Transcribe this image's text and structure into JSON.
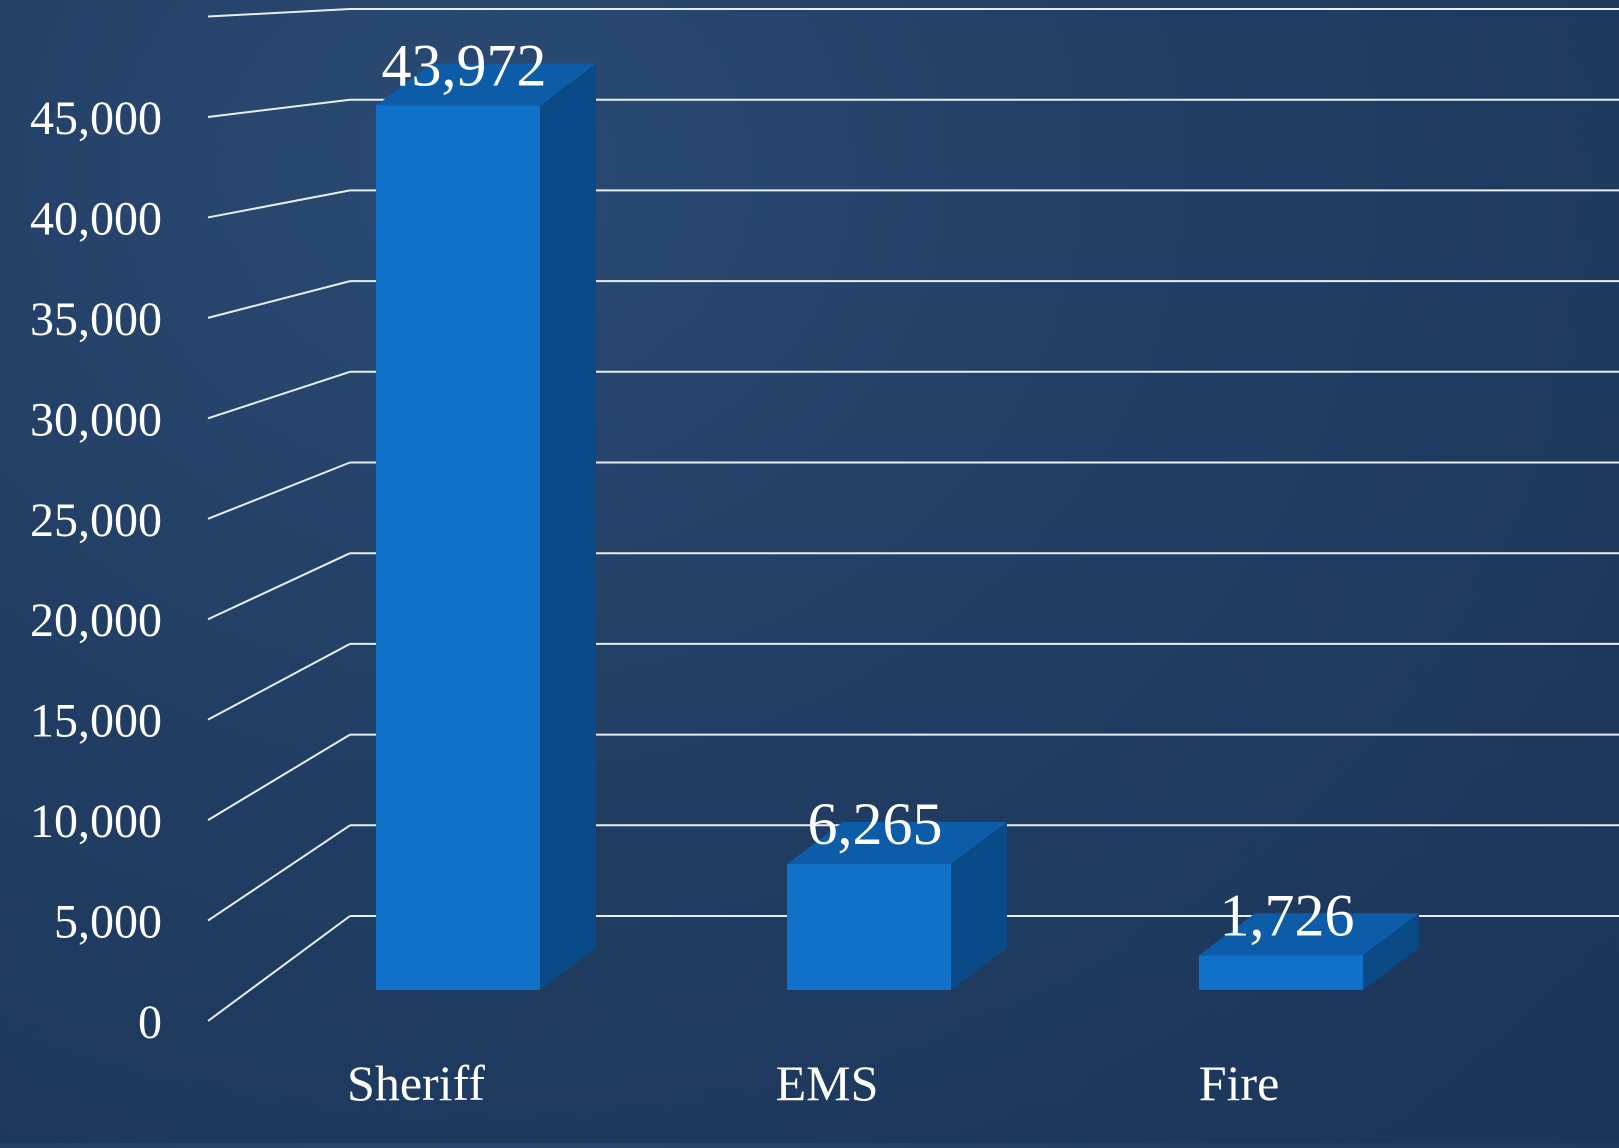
{
  "colors": {
    "background": "#213c62",
    "gridline": "#e8eef5",
    "bar_front": "#1170c8",
    "bar_side": "#0a4a86",
    "bar_top": "#0d5ca8",
    "text": "#ffffff"
  },
  "chart_data": {
    "type": "bar",
    "style": "3d-column",
    "categories": [
      "Sheriff",
      "EMS",
      "Fire"
    ],
    "values": [
      43972,
      6265,
      1726
    ],
    "data_labels": [
      "43,972",
      "6,265",
      "1,726"
    ],
    "ylim": [
      0,
      50000
    ],
    "y_ticks": [
      0,
      5000,
      10000,
      15000,
      20000,
      25000,
      30000,
      35000,
      40000,
      45000
    ],
    "y_tick_labels": [
      "0",
      "5,000",
      "10,000",
      "15,000",
      "20,000",
      "25,000",
      "30,000",
      "35,000",
      "40,000",
      "45,000"
    ],
    "title": "",
    "xlabel": "",
    "ylabel": "",
    "grid": true,
    "legend": "none"
  }
}
